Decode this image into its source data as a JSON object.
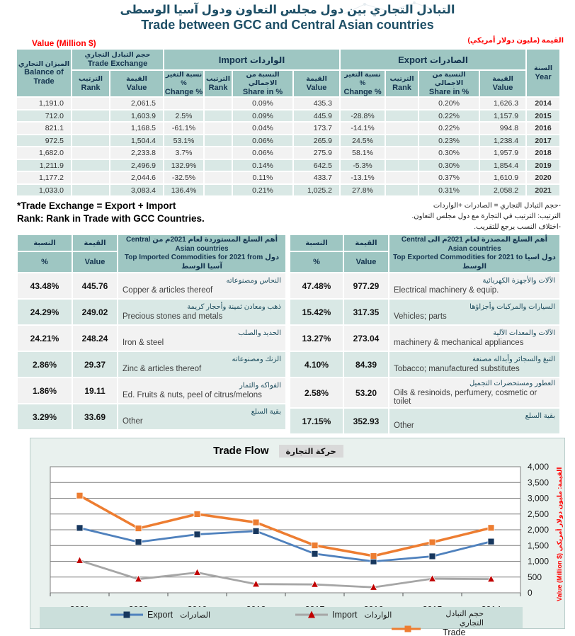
{
  "page": {
    "title_ar": "التبادل التجاري بين دول مجلس التعاون ودول آسيا الوسطى",
    "title_en": "Trade between GCC and Central Asian countries",
    "value_label_en": "Value (Million $)",
    "value_label_ar": "القيمة (مليون دولار أمريكي)"
  },
  "colors": {
    "header_teal": "#9ec6c2",
    "row_teal": "#d9e8e5",
    "row_gray": "#f2f2f2",
    "accent_red": "#ff0000",
    "title_blue": "#1e4f66",
    "export_blue": "#4f81bd",
    "export_marker_navy": "#17375e",
    "import_gray": "#a6a6a6",
    "import_marker_red": "#c00000",
    "trade_exchange_orange": "#ed7d31"
  },
  "main_table": {
    "balance_header": {
      "ar": "الميزان التجاري",
      "en": "Balance of Trade"
    },
    "year_header": {
      "ar": "السنة",
      "en": "Year"
    },
    "groups": [
      {
        "ar": "حجم التبادل التجاري",
        "en": "Trade Exchange"
      },
      {
        "ar": "الواردات",
        "en": "Import"
      },
      {
        "ar": "الصادرات",
        "en": "Export"
      }
    ],
    "sub_headers": [
      {
        "ar": "الترتيب",
        "en": "Rank"
      },
      {
        "ar": "القيمة",
        "en": "Value"
      },
      {
        "ar": "نسبة التغير %",
        "en": "Change %"
      },
      {
        "ar": "الترتيب",
        "en": "Rank"
      },
      {
        "ar": "النسبة من الاجمالي",
        "en": "Share in %"
      },
      {
        "ar": "القيمة",
        "en": "Value"
      },
      {
        "ar": "نسبة التغير %",
        "en": "Change %"
      },
      {
        "ar": "الترتيب",
        "en": "Rank"
      },
      {
        "ar": "النسبة من الاجمالي",
        "en": "Share in %"
      },
      {
        "ar": "القيمة",
        "en": "Value"
      }
    ],
    "rows": [
      {
        "balance": "1,191.0",
        "te_rank": "",
        "te_value": "2,061.5",
        "imp_change": "",
        "imp_rank": "",
        "imp_share": "0.09%",
        "imp_value": "435.3",
        "exp_change": "",
        "exp_rank": "",
        "exp_share": "0.20%",
        "exp_value": "1,626.3",
        "year": "2014"
      },
      {
        "balance": "712.0",
        "te_rank": "",
        "te_value": "1,603.9",
        "imp_change": "2.5%",
        "imp_rank": "",
        "imp_share": "0.09%",
        "imp_value": "445.9",
        "exp_change": "-28.8%",
        "exp_rank": "",
        "exp_share": "0.22%",
        "exp_value": "1,157.9",
        "year": "2015"
      },
      {
        "balance": "821.1",
        "te_rank": "",
        "te_value": "1,168.5",
        "imp_change": "-61.1%",
        "imp_rank": "",
        "imp_share": "0.04%",
        "imp_value": "173.7",
        "exp_change": "-14.1%",
        "exp_rank": "",
        "exp_share": "0.22%",
        "exp_value": "994.8",
        "year": "2016"
      },
      {
        "balance": "972.5",
        "te_rank": "",
        "te_value": "1,504.4",
        "imp_change": "53.1%",
        "imp_rank": "",
        "imp_share": "0.06%",
        "imp_value": "265.9",
        "exp_change": "24.5%",
        "exp_rank": "",
        "exp_share": "0.23%",
        "exp_value": "1,238.4",
        "year": "2017"
      },
      {
        "balance": "1,682.0",
        "te_rank": "",
        "te_value": "2,233.8",
        "imp_change": "3.7%",
        "imp_rank": "",
        "imp_share": "0.06%",
        "imp_value": "275.9",
        "exp_change": "58.1%",
        "exp_rank": "",
        "exp_share": "0.30%",
        "exp_value": "1,957.9",
        "year": "2018"
      },
      {
        "balance": "1,211.9",
        "te_rank": "",
        "te_value": "2,496.9",
        "imp_change": "132.9%",
        "imp_rank": "",
        "imp_share": "0.14%",
        "imp_value": "642.5",
        "exp_change": "-5.3%",
        "exp_rank": "",
        "exp_share": "0.30%",
        "exp_value": "1,854.4",
        "year": "2019"
      },
      {
        "balance": "1,177.2",
        "te_rank": "",
        "te_value": "2,044.6",
        "imp_change": "-32.5%",
        "imp_rank": "",
        "imp_share": "0.11%",
        "imp_value": "433.7",
        "exp_change": "-13.1%",
        "exp_rank": "",
        "exp_share": "0.37%",
        "exp_value": "1,610.9",
        "year": "2020"
      },
      {
        "balance": "1,033.0",
        "te_rank": "",
        "te_value": "3,083.4",
        "imp_change": "136.4%",
        "imp_rank": "",
        "imp_share": "0.21%",
        "imp_value": "1,025.2",
        "exp_change": "27.8%",
        "exp_rank": "",
        "exp_share": "0.31%",
        "exp_value": "2,058.2",
        "year": "2021"
      }
    ]
  },
  "footnotes": {
    "en": [
      "*Trade Exchange = Export + Import",
      "Rank: Rank in Trade with GCC Countries."
    ],
    "ar": [
      "-حجم التبادل التجاري = الصادرات +الواردات",
      "الترتيب: الترتيب في التجارة مع دول مجلس التعاون.",
      "-اختلاف النسب يرجع للتقريب."
    ]
  },
  "imports_table": {
    "pct_header": {
      "ar": "النسبة",
      "en": "%"
    },
    "value_header": {
      "ar": "القيمة",
      "en": "Value"
    },
    "title": {
      "line1": "أهم السلع المستوردة لعام 2021م من Central Asian countries",
      "line2": "Top Imported Commodities for 2021 from دول آسيا الوسط"
    },
    "rows": [
      {
        "pct": "43.48%",
        "value": "445.76",
        "ar": "النحاس ومصنوعاته",
        "en": "Copper & articles thereof"
      },
      {
        "pct": "24.29%",
        "value": "249.02",
        "ar": "ذهب ومعادن ثمينة وأحجار كريمة",
        "en": "Precious stones and metals"
      },
      {
        "pct": "24.21%",
        "value": "248.24",
        "ar": "الحديد والصلب",
        "en": "Iron & steel"
      },
      {
        "pct": "2.86%",
        "value": "29.37",
        "ar": "الزنك ومصنوعاته",
        "en": "Zinc & articles thereof"
      },
      {
        "pct": "1.86%",
        "value": "19.11",
        "ar": "الفواكه والثمار",
        "en": "Ed. Fruits & nuts, peel of citrus/melons"
      },
      {
        "pct": "3.29%",
        "value": "33.69",
        "ar": "بقية السلع",
        "en": "Other"
      }
    ]
  },
  "exports_table": {
    "pct_header": {
      "ar": "النسبة",
      "en": "%"
    },
    "value_header": {
      "ar": "القيمة",
      "en": "Value"
    },
    "title": {
      "line1": "أهم السلع المصدرة لعام 2021م الى Central Asian countries",
      "line2": "Top Exported Commodities for 2021 to دول اسيا الوسط"
    },
    "rows": [
      {
        "pct": "47.48%",
        "value": "977.29",
        "ar": "الآلات والأجهزة الكهربائية",
        "en": "Electrical machinery & equip."
      },
      {
        "pct": "15.42%",
        "value": "317.35",
        "ar": "السيارات والمركبات وأجزاؤها",
        "en": "Vehicles; parts"
      },
      {
        "pct": "13.27%",
        "value": "273.04",
        "ar": "الآلات والمعدات الآلية",
        "en": "machinery & mechanical appliances"
      },
      {
        "pct": "4.10%",
        "value": "84.39",
        "ar": "التبغ والسجائر وأبداله مصنعة",
        "en": "Tobacco; manufactured substitutes"
      },
      {
        "pct": "2.58%",
        "value": "53.20",
        "ar": "العطور ومستحضرات التجميل",
        "en": "Oils & resinoids, perfumery, cosmetic or toilet"
      },
      {
        "pct": "17.15%",
        "value": "352.93",
        "ar": "بقية السلع",
        "en": "Other"
      }
    ]
  },
  "chart_data": {
    "type": "line",
    "title_en": "Trade Flow",
    "title_ar": "حركة التجارة",
    "x": [
      "2021",
      "2020",
      "2019",
      "2018",
      "2017",
      "2016",
      "2015",
      "2014"
    ],
    "series": [
      {
        "name": "Export",
        "name_ar": "الصادرات",
        "color": "#4f81bd",
        "marker": "square",
        "marker_color": "#17375e",
        "values": [
          2058.2,
          1610.9,
          1854.4,
          1957.9,
          1238.4,
          994.8,
          1157.9,
          1626.3
        ]
      },
      {
        "name": "Import",
        "name_ar": "الواردات",
        "color": "#a6a6a6",
        "marker": "triangle",
        "marker_color": "#c00000",
        "values": [
          1025.2,
          433.7,
          642.5,
          275.9,
          265.9,
          173.7,
          445.9,
          435.3
        ]
      },
      {
        "name": "Trade Exchange",
        "name_ar": "حجم التبادل التجاري",
        "color": "#ed7d31",
        "marker": "square",
        "marker_color": "#ed7d31",
        "values": [
          3083.4,
          2044.6,
          2496.9,
          2233.8,
          1504.4,
          1168.5,
          1603.9,
          2061.5
        ]
      }
    ],
    "ylim": [
      0,
      4000
    ],
    "ytick_step": 500,
    "ylabel_en": "Value (Million $)",
    "ylabel_ar": "القيمة: مليون دولار أمريكي",
    "grid": true,
    "legend_position": "bottom"
  }
}
